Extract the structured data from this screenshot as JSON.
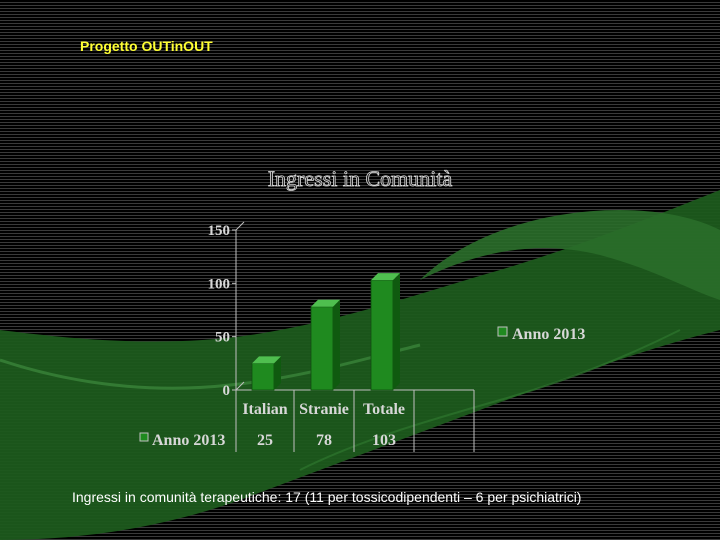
{
  "header": {
    "project_title": "Progetto OUTinOUT"
  },
  "chart_data": {
    "type": "bar",
    "title": "Ingressi in Comunità",
    "categories": [
      "Italian",
      "Stranie",
      "Totale"
    ],
    "series": [
      {
        "name": "Anno 2013",
        "values": [
          25,
          78,
          103
        ]
      }
    ],
    "yticks": [
      0,
      50,
      100,
      150
    ],
    "ylim": [
      0,
      150
    ],
    "xlabel": "",
    "ylabel": "",
    "legend": "right",
    "data_table": true,
    "grid": false,
    "style": "3d",
    "colors": {
      "bar": "#1f8a1f",
      "text": "#d8d8d8",
      "axis": "#c0c0c0"
    }
  },
  "footer": {
    "note": "Ingressi in comunità terapeutiche: 17 (11 per tossicodipendenti – 6 per psichiatrici)"
  }
}
